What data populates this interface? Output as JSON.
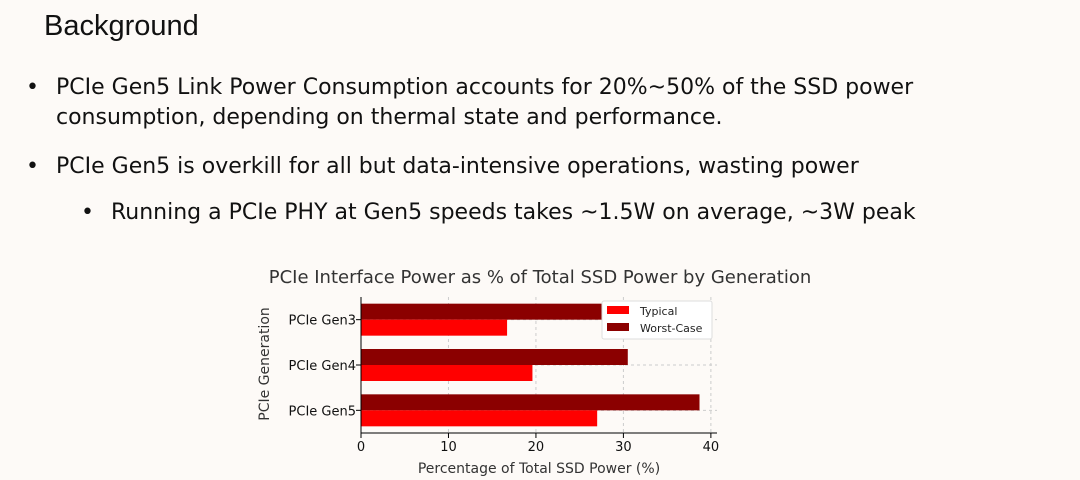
{
  "slide": {
    "title": "Background",
    "bullets": [
      {
        "text": "PCIe Gen5 Link Power Consumption accounts for 20%~50% of the SSD power consumption, depending on thermal state and performance.",
        "line1": "PCIe Gen5 Link Power Consumption accounts for 20%~50% of the SSD power",
        "line2": "consumption, depending on thermal state and performance."
      },
      {
        "text": "PCIe Gen5 is overkill for all but data-intensive operations, wasting power"
      },
      {
        "text": "Running a PCIe PHY at Gen5 speeds takes ~1.5W on average, ~3W peak"
      }
    ],
    "bullet_glyph": "•"
  },
  "chart_data": {
    "type": "bar",
    "orientation": "horizontal",
    "title": "PCIe Interface Power as % of Total SSD Power by Generation",
    "xlabel": "Percentage of Total SSD Power (%)",
    "ylabel": "PCIe Generation",
    "categories": [
      "PCIe Gen3",
      "PCIe Gen4",
      "PCIe Gen5"
    ],
    "series": [
      {
        "name": "Typical",
        "values": [
          16.7,
          19.6,
          27.0
        ],
        "color": "#ff0000"
      },
      {
        "name": "Worst-Case",
        "values": [
          28,
          30.5,
          38.7
        ],
        "color": "#8b0000"
      }
    ],
    "xlim": [
      0,
      40.7
    ],
    "xticks": [
      0,
      10,
      20,
      30,
      40
    ],
    "grid": true,
    "legend": "top-right"
  }
}
